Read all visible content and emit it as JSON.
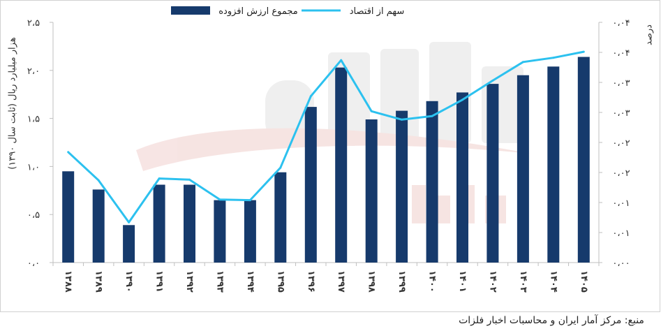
{
  "source": {
    "text": "منبع: مرکز آمار ایران و محاسبات اخبار فلزات"
  },
  "colors": {
    "bars": "#163a6c",
    "line": "#2cc1ef",
    "axis": "#bfbfbf"
  },
  "chart_data": {
    "type": "bar",
    "categories": [
      "۱۳۸۸",
      "۱۳۸۹",
      "۱۳۹۰",
      "۱۳۹۱",
      "۱۳۹۲",
      "۱۳۹۳",
      "۱۳۹۴",
      "۱۳۹۵",
      "۱۳۹۶",
      "۱۳۹۷",
      "۱۳۹۸",
      "۱۳۹۹",
      "۱۴۰۰",
      "۱۴۰۱",
      "۱۴۰۲",
      "۱۴۰۳",
      "۱۴۰۴",
      "۱۴۰۵"
    ],
    "series": [
      {
        "name": "مجموع ارزش افزوده",
        "type": "bar",
        "axis": "left",
        "values": [
          0.95,
          0.76,
          0.39,
          0.81,
          0.81,
          0.65,
          0.65,
          0.94,
          1.62,
          2.03,
          1.49,
          1.58,
          1.68,
          1.77,
          1.86,
          1.95,
          2.04,
          2.14
        ]
      },
      {
        "name": "سهم از اقتصاد",
        "type": "line",
        "axis": "right",
        "values": [
          0.0184,
          0.0137,
          0.0067,
          0.014,
          0.0138,
          0.0105,
          0.0104,
          0.0158,
          0.0277,
          0.0337,
          0.0252,
          0.0238,
          0.0244,
          0.0271,
          0.0303,
          0.0334,
          0.0341,
          0.0351
        ]
      }
    ],
    "ylabel": "هزار میلیارد ریال (ثابت سال ۱۳۹۰)",
    "y2label": "درصد",
    "ylim": [
      0,
      2.5
    ],
    "y2lim": [
      0,
      0.04
    ],
    "yticks": [
      "۰،۰",
      "۰،۵",
      "۱،۰",
      "۱،۵",
      "۲،۰",
      "۲،۵"
    ],
    "y2ticks": [
      "۰،۰۰",
      "۰،۰۱",
      "۰،۰۱",
      "۰،۰۲",
      "۰،۰۲",
      "۰،۰۳",
      "۰،۰۳",
      "۰،۰۴",
      "۰،۰۴"
    ],
    "grid": false,
    "legend_position": "top"
  }
}
